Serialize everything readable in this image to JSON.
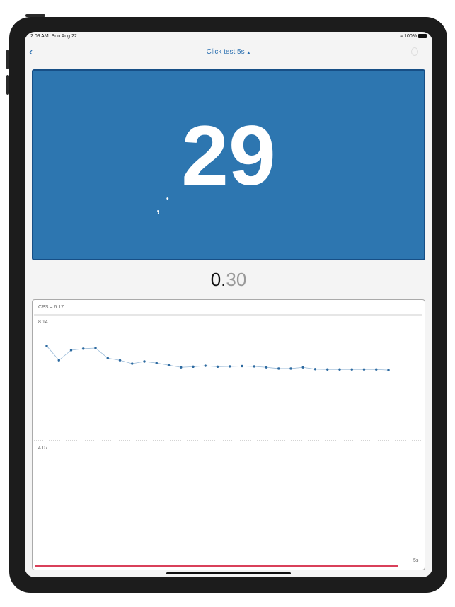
{
  "status": {
    "time": "2:09 AM",
    "date": "Sun Aug 22",
    "battery": "100%"
  },
  "nav": {
    "title": "Click test 5s",
    "title_icon": "triangle-up",
    "back_icon": "chevron-left",
    "right_icon": "timer-icon"
  },
  "tap_area": {
    "count": "29",
    "color": "#2d76b0"
  },
  "timer": {
    "whole": "0.",
    "fraction": "30"
  },
  "chart_data": {
    "type": "line",
    "title": "CPS = 6.17",
    "ytick_labels": [
      "8.14",
      "4.07"
    ],
    "xtick_labels": [
      "5s"
    ],
    "ylim": [
      0,
      8.14
    ],
    "xlim": [
      0,
      5
    ],
    "grid": "dotted at 4.07",
    "series_color": "#2d6aa0",
    "progress_color": "#d9405a",
    "values": [
      7.17,
      6.7,
      7.03,
      7.08,
      7.1,
      6.77,
      6.7,
      6.59,
      6.66,
      6.61,
      6.54,
      6.47,
      6.49,
      6.52,
      6.49,
      6.5,
      6.51,
      6.5,
      6.47,
      6.43,
      6.43,
      6.47,
      6.41,
      6.4,
      6.4,
      6.4,
      6.4,
      6.4,
      6.38
    ]
  }
}
